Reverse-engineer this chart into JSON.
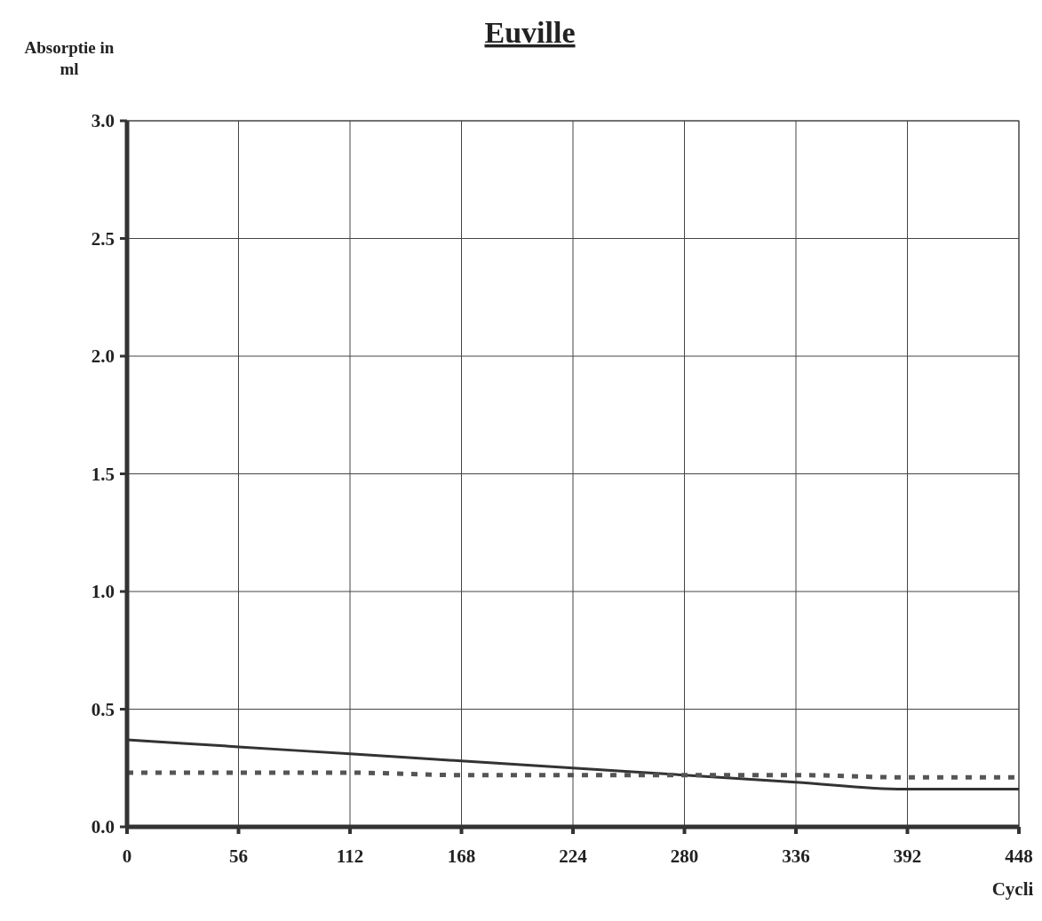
{
  "chart_data": {
    "type": "line",
    "title": "Euville",
    "ylabel": "Absorptie in ml",
    "xlabel": "Cycli",
    "x": [
      0,
      56,
      112,
      168,
      224,
      280,
      336,
      392,
      448
    ],
    "series": [
      {
        "color": "#333333",
        "line_style": "solid",
        "values": [
          0.37,
          0.34,
          0.31,
          0.28,
          0.25,
          0.22,
          0.19,
          0.16,
          0.16
        ]
      },
      {
        "color": "#555555",
        "line_style": "dashed",
        "values": [
          0.23,
          0.23,
          0.23,
          0.22,
          0.22,
          0.22,
          0.22,
          0.21,
          0.21
        ]
      }
    ],
    "xlim": [
      0,
      448
    ],
    "xticks": [
      0,
      56,
      112,
      168,
      224,
      280,
      336,
      392,
      448
    ],
    "ylim": [
      0,
      3
    ],
    "yticks": [
      {
        "value": 0,
        "label": "0.0"
      },
      {
        "value": 0.5,
        "label": "0.5"
      },
      {
        "value": 1,
        "label": "1.0"
      },
      {
        "value": 1.5,
        "label": "1.5"
      },
      {
        "value": 2,
        "label": "2.0"
      },
      {
        "value": 2.5,
        "label": "2.5"
      },
      {
        "value": 3,
        "label": "3.0"
      }
    ],
    "grid": true,
    "marker": "none"
  }
}
